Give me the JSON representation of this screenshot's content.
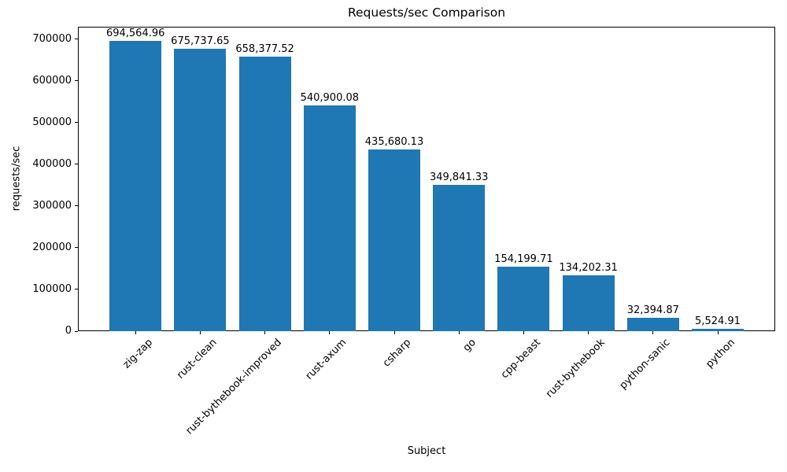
{
  "chart_data": {
    "type": "bar",
    "title": "Requests/sec Comparison",
    "xlabel": "Subject",
    "ylabel": "requests/sec",
    "categories": [
      "zig-zap",
      "rust-clean",
      "rust-bythebook-improved",
      "rust-axum",
      "csharp",
      "go",
      "cpp-beast",
      "rust-bythebook",
      "python-sanic",
      "python"
    ],
    "values": [
      694564.96,
      675737.65,
      658377.52,
      540900.08,
      435680.13,
      349841.33,
      154199.71,
      134202.31,
      32394.87,
      5524.91
    ],
    "value_labels": [
      "694,564.96",
      "675,737.65",
      "658,377.52",
      "540,900.08",
      "435,680.13",
      "349,841.33",
      "154,199.71",
      "134,202.31",
      "32,394.87",
      "5,524.91"
    ],
    "yticks": [
      0,
      100000,
      200000,
      300000,
      400000,
      500000,
      600000,
      700000
    ],
    "ytick_labels": [
      "0",
      "100000",
      "200000",
      "300000",
      "400000",
      "500000",
      "600000",
      "700000"
    ],
    "ylim": [
      0,
      729300
    ],
    "bar_color": "#1f77b4",
    "grid": false,
    "legend_position": "none"
  }
}
